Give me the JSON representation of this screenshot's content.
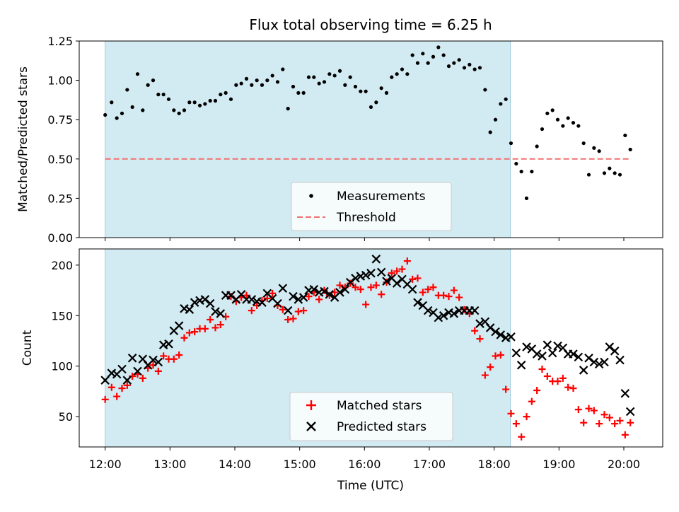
{
  "chart_data": [
    {
      "type": "scatter",
      "title": "Flux total observing time = 6.25 h",
      "xlabel": "",
      "ylabel": "Matched/Predicted stars",
      "x_unit": "hours (UTC), decimal",
      "xlim": [
        11.6,
        20.6
      ],
      "ylim": [
        0,
        1.25
      ],
      "yticks": [
        "0.00",
        "0.25",
        "0.50",
        "0.75",
        "1.00",
        "1.25"
      ],
      "shaded_span": {
        "x_start": 12.0,
        "x_end": 18.25,
        "color": "#add8e6"
      },
      "threshold": 0.5,
      "legend": {
        "placement": "lower-center",
        "entries": [
          "Measurements",
          "Threshold"
        ]
      },
      "series": [
        {
          "name": "Measurements",
          "color": "#000000",
          "marker": "dot",
          "points": [
            [
              12.0,
              0.78
            ],
            [
              12.1,
              0.86
            ],
            [
              12.18,
              0.76
            ],
            [
              12.26,
              0.79
            ],
            [
              12.34,
              0.94
            ],
            [
              12.42,
              0.83
            ],
            [
              12.5,
              1.04
            ],
            [
              12.58,
              0.81
            ],
            [
              12.66,
              0.97
            ],
            [
              12.74,
              1.0
            ],
            [
              12.82,
              0.91
            ],
            [
              12.9,
              0.91
            ],
            [
              12.98,
              0.88
            ],
            [
              13.06,
              0.81
            ],
            [
              13.14,
              0.79
            ],
            [
              13.22,
              0.81
            ],
            [
              13.3,
              0.86
            ],
            [
              13.38,
              0.86
            ],
            [
              13.46,
              0.84
            ],
            [
              13.54,
              0.85
            ],
            [
              13.62,
              0.87
            ],
            [
              13.7,
              0.87
            ],
            [
              13.78,
              0.91
            ],
            [
              13.86,
              0.92
            ],
            [
              13.94,
              0.88
            ],
            [
              14.02,
              0.97
            ],
            [
              14.1,
              0.98
            ],
            [
              14.18,
              1.01
            ],
            [
              14.26,
              0.97
            ],
            [
              14.34,
              1.0
            ],
            [
              14.42,
              0.97
            ],
            [
              14.5,
              1.0
            ],
            [
              14.58,
              1.03
            ],
            [
              14.66,
              0.99
            ],
            [
              14.74,
              1.07
            ],
            [
              14.82,
              0.82
            ],
            [
              14.9,
              0.96
            ],
            [
              14.98,
              0.92
            ],
            [
              15.06,
              0.92
            ],
            [
              15.14,
              1.02
            ],
            [
              15.22,
              1.02
            ],
            [
              15.3,
              0.98
            ],
            [
              15.38,
              0.99
            ],
            [
              15.46,
              1.04
            ],
            [
              15.54,
              1.03
            ],
            [
              15.62,
              1.06
            ],
            [
              15.7,
              0.97
            ],
            [
              15.78,
              1.02
            ],
            [
              15.86,
              0.96
            ],
            [
              15.94,
              0.93
            ],
            [
              16.02,
              0.93
            ],
            [
              16.1,
              0.83
            ],
            [
              16.18,
              0.86
            ],
            [
              16.26,
              0.95
            ],
            [
              16.34,
              0.92
            ],
            [
              16.42,
              1.02
            ],
            [
              16.5,
              1.04
            ],
            [
              16.58,
              1.07
            ],
            [
              16.66,
              1.04
            ],
            [
              16.74,
              1.16
            ],
            [
              16.82,
              1.11
            ],
            [
              16.9,
              1.17
            ],
            [
              16.98,
              1.11
            ],
            [
              17.06,
              1.15
            ],
            [
              17.14,
              1.21
            ],
            [
              17.22,
              1.16
            ],
            [
              17.3,
              1.09
            ],
            [
              17.38,
              1.11
            ],
            [
              17.46,
              1.13
            ],
            [
              17.54,
              1.08
            ],
            [
              17.62,
              1.1
            ],
            [
              17.7,
              1.07
            ],
            [
              17.78,
              1.08
            ],
            [
              17.86,
              0.94
            ],
            [
              17.94,
              0.67
            ],
            [
              18.02,
              0.75
            ],
            [
              18.1,
              0.85
            ],
            [
              18.18,
              0.88
            ],
            [
              18.26,
              0.6
            ],
            [
              18.34,
              0.47
            ],
            [
              18.42,
              0.42
            ],
            [
              18.5,
              0.25
            ],
            [
              18.58,
              0.42
            ],
            [
              18.66,
              0.58
            ],
            [
              18.74,
              0.69
            ],
            [
              18.82,
              0.79
            ],
            [
              18.9,
              0.81
            ],
            [
              18.98,
              0.75
            ],
            [
              19.06,
              0.71
            ],
            [
              19.14,
              0.76
            ],
            [
              19.22,
              0.73
            ],
            [
              19.3,
              0.71
            ],
            [
              19.38,
              0.6
            ],
            [
              19.46,
              0.4
            ],
            [
              19.54,
              0.57
            ],
            [
              19.62,
              0.55
            ],
            [
              19.7,
              0.41
            ],
            [
              19.78,
              0.44
            ],
            [
              19.86,
              0.41
            ],
            [
              19.94,
              0.4
            ],
            [
              20.02,
              0.65
            ],
            [
              20.1,
              0.56
            ]
          ]
        }
      ]
    },
    {
      "type": "scatter",
      "title": "",
      "xlabel": "Time (UTC)",
      "ylabel": "Count",
      "x_unit": "hours (UTC), decimal",
      "xlim": [
        11.6,
        20.6
      ],
      "ylim": [
        20,
        216
      ],
      "xticks": [
        "12:00",
        "13:00",
        "14:00",
        "15:00",
        "16:00",
        "17:00",
        "18:00",
        "19:00",
        "20:00"
      ],
      "yticks": [
        "50",
        "100",
        "150",
        "200"
      ],
      "shaded_span": {
        "x_start": 12.0,
        "x_end": 18.25,
        "color": "#add8e6"
      },
      "legend": {
        "placement": "lower-center",
        "entries": [
          "Matched stars",
          "Predicted stars"
        ]
      },
      "series": [
        {
          "name": "Matched stars",
          "color": "#ff0000",
          "marker": "plus",
          "x": [
            12.0,
            12.1,
            12.18,
            12.26,
            12.34,
            12.42,
            12.5,
            12.58,
            12.66,
            12.74,
            12.82,
            12.9,
            12.98,
            13.06,
            13.14,
            13.22,
            13.3,
            13.38,
            13.46,
            13.54,
            13.62,
            13.7,
            13.78,
            13.86,
            13.94,
            14.02,
            14.1,
            14.18,
            14.26,
            14.34,
            14.42,
            14.5,
            14.58,
            14.66,
            14.74,
            14.82,
            14.9,
            14.98,
            15.06,
            15.14,
            15.22,
            15.3,
            15.38,
            15.46,
            15.54,
            15.62,
            15.7,
            15.78,
            15.86,
            15.94,
            16.02,
            16.1,
            16.18,
            16.26,
            16.34,
            16.42,
            16.5,
            16.58,
            16.66,
            16.74,
            16.82,
            16.9,
            16.98,
            17.06,
            17.14,
            17.22,
            17.3,
            17.38,
            17.46,
            17.54,
            17.62,
            17.7,
            17.78,
            17.86,
            17.94,
            18.02,
            18.1,
            18.18,
            18.26,
            18.34,
            18.42,
            18.5,
            18.58,
            18.66,
            18.74,
            18.82,
            18.9,
            18.98,
            19.06,
            19.14,
            19.22,
            19.3,
            19.38,
            19.46,
            19.54,
            19.62,
            19.7,
            19.78,
            19.86,
            19.94,
            20.02,
            20.1
          ],
          "y": [
            67,
            79,
            70,
            78,
            81,
            90,
            92,
            88,
            98,
            101,
            95,
            110,
            107,
            107,
            111,
            128,
            133,
            134,
            137,
            137,
            146,
            138,
            141,
            149,
            169,
            164,
            168,
            170,
            155,
            160,
            165,
            167,
            172,
            160,
            156,
            146,
            147,
            154,
            155,
            169,
            173,
            166,
            175,
            170,
            173,
            180,
            178,
            182,
            178,
            176,
            161,
            178,
            180,
            171,
            183,
            192,
            194,
            196,
            204,
            186,
            187,
            173,
            176,
            178,
            170,
            170,
            169,
            175,
            168,
            156,
            152,
            135,
            127,
            91,
            99,
            110,
            111,
            77,
            53,
            43,
            30,
            50,
            65,
            76,
            97,
            90,
            85,
            85,
            88,
            79,
            78,
            57,
            44,
            58,
            56,
            43,
            52,
            49,
            43,
            46,
            32,
            44
          ]
        },
        {
          "name": "Predicted stars",
          "color": "#000000",
          "marker": "x",
          "x": [
            12.0,
            12.1,
            12.18,
            12.26,
            12.34,
            12.42,
            12.5,
            12.58,
            12.66,
            12.74,
            12.82,
            12.9,
            12.98,
            13.06,
            13.14,
            13.22,
            13.3,
            13.38,
            13.46,
            13.54,
            13.62,
            13.7,
            13.78,
            13.86,
            13.94,
            14.02,
            14.1,
            14.18,
            14.26,
            14.34,
            14.42,
            14.5,
            14.58,
            14.66,
            14.74,
            14.82,
            14.9,
            14.98,
            15.06,
            15.14,
            15.22,
            15.3,
            15.38,
            15.46,
            15.54,
            15.62,
            15.7,
            15.78,
            15.86,
            15.94,
            16.02,
            16.1,
            16.18,
            16.26,
            16.34,
            16.42,
            16.5,
            16.58,
            16.66,
            16.74,
            16.82,
            16.9,
            16.98,
            17.06,
            17.14,
            17.22,
            17.3,
            17.38,
            17.46,
            17.54,
            17.62,
            17.7,
            17.78,
            17.86,
            17.94,
            18.02,
            18.1,
            18.18,
            18.26,
            18.34,
            18.42,
            18.5,
            18.58,
            18.66,
            18.74,
            18.82,
            18.9,
            18.98,
            19.06,
            19.14,
            19.22,
            19.3,
            19.38,
            19.46,
            19.54,
            19.62,
            19.7,
            19.78,
            19.86,
            19.94,
            20.02,
            20.1
          ],
          "y": [
            86,
            93,
            92,
            97,
            86,
            108,
            95,
            107,
            101,
            106,
            104,
            121,
            122,
            135,
            140,
            157,
            156,
            163,
            165,
            166,
            162,
            154,
            152,
            170,
            170,
            166,
            171,
            166,
            166,
            164,
            163,
            172,
            167,
            162,
            177,
            155,
            169,
            166,
            168,
            175,
            176,
            173,
            174,
            171,
            168,
            173,
            176,
            183,
            187,
            189,
            190,
            192,
            206,
            193,
            184,
            187,
            182,
            186,
            181,
            176,
            163,
            160,
            155,
            153,
            148,
            150,
            153,
            152,
            155,
            155,
            155,
            155,
            142,
            144,
            138,
            134,
            131,
            128,
            129,
            113,
            101,
            119,
            117,
            112,
            110,
            121,
            113,
            120,
            118,
            112,
            112,
            109,
            96,
            108,
            104,
            102,
            104,
            119,
            115,
            106,
            73,
            55
          ]
        }
      ]
    }
  ]
}
